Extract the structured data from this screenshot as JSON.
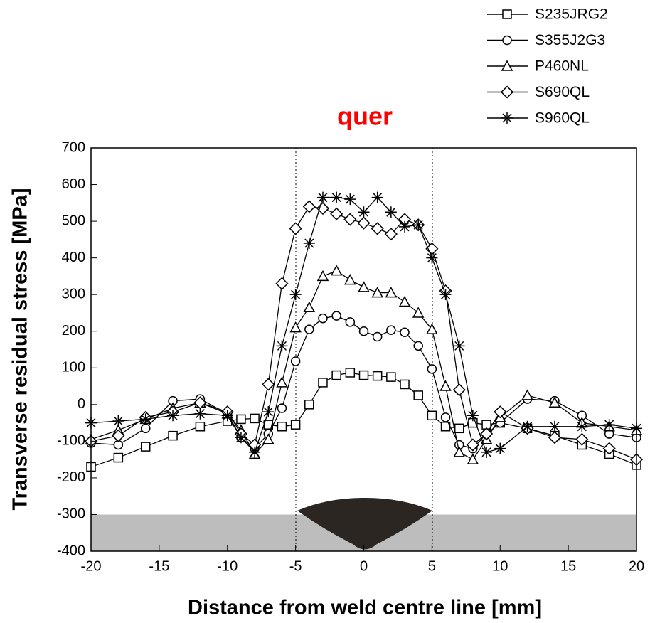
{
  "chart_data": {
    "type": "line",
    "title": "quer",
    "x_label": "Distance from weld centre line [mm]",
    "y_label": "Transverse residual stress [MPa]",
    "x": [
      -20,
      -18,
      -16,
      -14,
      -12,
      -10,
      -9,
      -8,
      -7,
      -6,
      -5,
      -4,
      -3,
      -2,
      -1,
      0,
      1,
      2,
      3,
      4,
      5,
      6,
      7,
      8,
      9,
      10,
      12,
      14,
      16,
      18,
      20
    ],
    "series": [
      {
        "name": "S235JRG2",
        "color": "#000000",
        "marker": "square",
        "values": [
          -170,
          -145,
          -115,
          -85,
          -60,
          -45,
          -40,
          -38,
          -55,
          -60,
          -55,
          0,
          60,
          80,
          87,
          80,
          78,
          75,
          55,
          25,
          -30,
          -60,
          -65,
          -50,
          -55,
          -50,
          -65,
          -85,
          -110,
          -135,
          -165
        ]
      },
      {
        "name": "S355J2G3",
        "color": "#000000",
        "marker": "circle",
        "values": [
          -105,
          -110,
          -65,
          10,
          15,
          -25,
          -90,
          -120,
          -80,
          -10,
          118,
          205,
          235,
          242,
          225,
          200,
          185,
          203,
          197,
          160,
          97,
          -35,
          -110,
          -120,
          -80,
          -50,
          15,
          10,
          -30,
          -80,
          -90
        ]
      },
      {
        "name": "P460NL",
        "color": "#000000",
        "marker": "triangle",
        "values": [
          -95,
          -70,
          -40,
          -10,
          5,
          -25,
          -70,
          -135,
          -95,
          60,
          210,
          265,
          350,
          365,
          340,
          320,
          305,
          305,
          280,
          250,
          205,
          50,
          -130,
          -150,
          -95,
          -35,
          25,
          5,
          -50,
          -60,
          -70
        ]
      },
      {
        "name": "S690QL",
        "color": "#000000",
        "marker": "diamond",
        "values": [
          -100,
          -85,
          -35,
          -20,
          5,
          -20,
          -80,
          -110,
          55,
          330,
          480,
          540,
          535,
          520,
          505,
          495,
          480,
          465,
          505,
          490,
          425,
          310,
          40,
          -110,
          -80,
          -20,
          -65,
          -90,
          -95,
          -120,
          -150
        ]
      },
      {
        "name": "S960QL",
        "color": "#000000",
        "marker": "star",
        "values": [
          -50,
          -45,
          -40,
          -30,
          -25,
          -30,
          -90,
          -130,
          -20,
          160,
          300,
          440,
          565,
          565,
          560,
          525,
          565,
          525,
          485,
          490,
          400,
          300,
          160,
          -30,
          -130,
          -120,
          -60,
          -60,
          -60,
          -55,
          -65
        ]
      }
    ],
    "xlim": [
      -20,
      20
    ],
    "xticks": [
      -20,
      -15,
      -10,
      -5,
      0,
      5,
      10,
      15,
      20
    ],
    "ylim": [
      -400,
      700
    ],
    "yticks": [
      -400,
      -300,
      -200,
      -100,
      0,
      100,
      200,
      300,
      400,
      500,
      600,
      700
    ],
    "title_color": "#ff0000"
  }
}
